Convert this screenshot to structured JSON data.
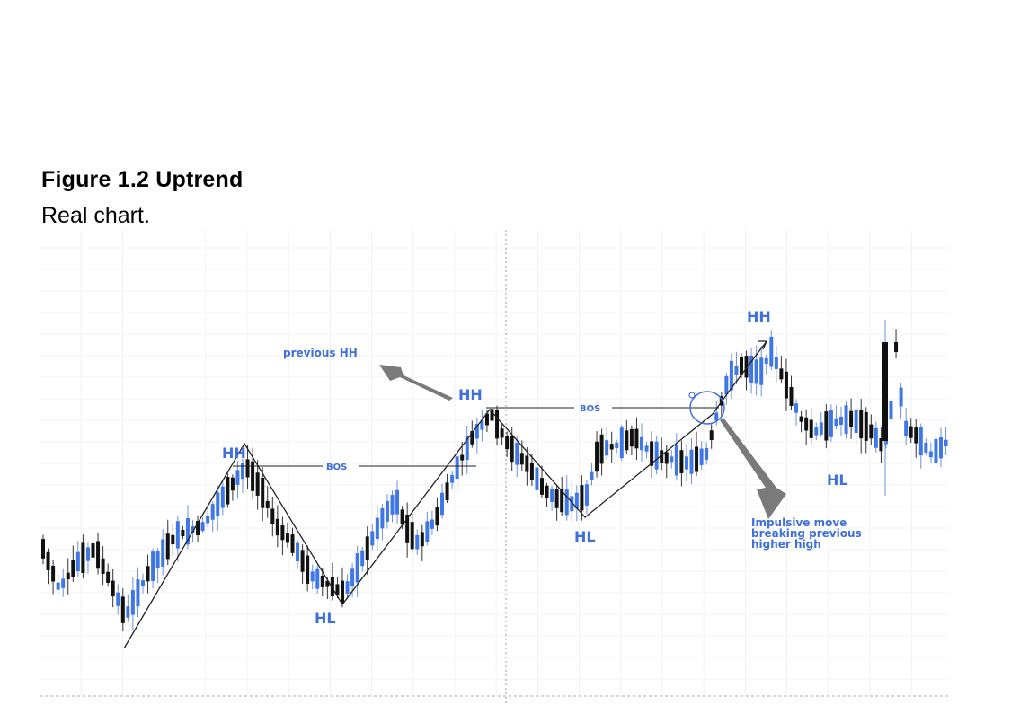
{
  "figure": {
    "title": "Figure 1.2 Uptrend",
    "subtitle": "Real chart."
  },
  "chart_data": {
    "type": "candlestick",
    "title": "",
    "xlabel": "",
    "ylabel": "",
    "grid": true,
    "colors": {
      "bull": "#3f78e6",
      "bear": "#111111",
      "label": "#3f6fdc",
      "arrow": "#777777"
    },
    "annotations": {
      "hh_labels": [
        "HH",
        "HH",
        "HH"
      ],
      "hl_labels": [
        "HL",
        "HL",
        "HL"
      ],
      "bos_labels": [
        "BOS",
        "BOS"
      ],
      "previous_hh": "previous HH",
      "impulsive_lines": [
        "Impulsive move",
        "breaking previous",
        "higher high"
      ]
    }
  }
}
